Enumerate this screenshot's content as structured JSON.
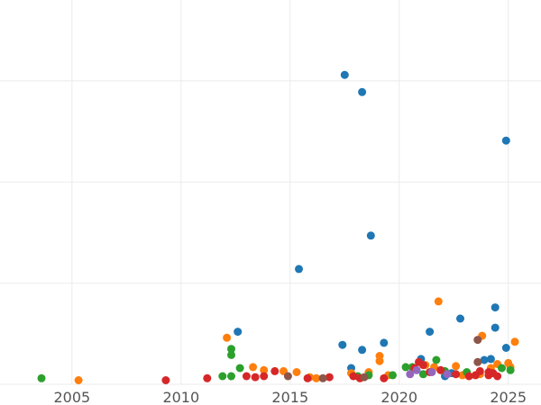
{
  "chart_data": {
    "type": "scatter",
    "title": "",
    "xlabel": "",
    "ylabel": "",
    "xlim": [
      2001.7,
      2026.5
    ],
    "ylim": [
      0,
      38
    ],
    "grid": true,
    "legend": "none",
    "x_ticks": [
      2005,
      2010,
      2015,
      2020,
      2025
    ],
    "x_tick_labels": [
      "2005",
      "2010",
      "2015",
      "2020",
      "2025"
    ],
    "y_gridlines": [
      0,
      10,
      20,
      30
    ],
    "series": [
      {
        "color": "#1f77b4",
        "points": [
          [
            2012.6,
            5.2
          ],
          [
            2015.4,
            11.4
          ],
          [
            2017.5,
            30.6
          ],
          [
            2018.3,
            28.9
          ],
          [
            2018.7,
            14.7
          ],
          [
            2017.4,
            3.9
          ],
          [
            2018.3,
            3.4
          ],
          [
            2019.3,
            4.1
          ],
          [
            2017.8,
            1.6
          ],
          [
            2021.0,
            2.5
          ],
          [
            2021.4,
            5.2
          ],
          [
            2022.8,
            6.5
          ],
          [
            2024.4,
            7.6
          ],
          [
            2024.4,
            5.6
          ],
          [
            2024.9,
            3.6
          ],
          [
            2023.9,
            2.4
          ],
          [
            2024.2,
            2.5
          ],
          [
            2024.9,
            24.1
          ],
          [
            2022.1,
            0.8
          ],
          [
            2022.4,
            1.1
          ]
        ]
      },
      {
        "color": "#ff7f0e",
        "points": [
          [
            2005.3,
            0.4
          ],
          [
            2012.1,
            4.6
          ],
          [
            2013.3,
            1.7
          ],
          [
            2013.8,
            1.4
          ],
          [
            2014.7,
            1.3
          ],
          [
            2015.3,
            1.2
          ],
          [
            2015.9,
            0.7
          ],
          [
            2016.2,
            0.6
          ],
          [
            2017.8,
            1.1
          ],
          [
            2018.6,
            1.2
          ],
          [
            2019.1,
            2.3
          ],
          [
            2019.1,
            2.8
          ],
          [
            2019.5,
            0.9
          ],
          [
            2021.2,
            1.9
          ],
          [
            2021.6,
            1.7
          ],
          [
            2021.8,
            8.2
          ],
          [
            2022.6,
            1.8
          ],
          [
            2023.8,
            4.8
          ],
          [
            2024.5,
            2.0
          ],
          [
            2025.0,
            2.1
          ],
          [
            2025.3,
            4.2
          ],
          [
            2025.1,
            1.7
          ],
          [
            2024.2,
            1.6
          ],
          [
            2023.7,
            1.0
          ],
          [
            2022.9,
            0.9
          ]
        ]
      },
      {
        "color": "#2ca02c",
        "points": [
          [
            2003.6,
            0.6
          ],
          [
            2011.9,
            0.8
          ],
          [
            2012.3,
            0.8
          ],
          [
            2012.3,
            3.5
          ],
          [
            2012.3,
            2.9
          ],
          [
            2012.7,
            1.6
          ],
          [
            2018.1,
            0.8
          ],
          [
            2018.6,
            0.9
          ],
          [
            2019.7,
            0.9
          ],
          [
            2020.3,
            1.7
          ],
          [
            2020.6,
            1.7
          ],
          [
            2021.7,
            2.4
          ],
          [
            2022.1,
            1.3
          ],
          [
            2024.7,
            1.6
          ],
          [
            2025.1,
            1.4
          ],
          [
            2023.1,
            1.2
          ],
          [
            2021.1,
            1.0
          ]
        ]
      },
      {
        "color": "#d62728",
        "points": [
          [
            2009.3,
            0.4
          ],
          [
            2011.2,
            0.6
          ],
          [
            2013.0,
            0.8
          ],
          [
            2013.4,
            0.7
          ],
          [
            2013.8,
            0.8
          ],
          [
            2014.3,
            1.3
          ],
          [
            2015.8,
            0.6
          ],
          [
            2016.8,
            0.7
          ],
          [
            2017.9,
            0.8
          ],
          [
            2018.2,
            0.6
          ],
          [
            2019.3,
            0.6
          ],
          [
            2020.7,
            1.6
          ],
          [
            2021.1,
            1.9
          ],
          [
            2021.4,
            1.2
          ],
          [
            2021.9,
            1.4
          ],
          [
            2022.6,
            1.0
          ],
          [
            2023.2,
            0.8
          ],
          [
            2023.5,
            0.9
          ],
          [
            2024.1,
            0.9
          ],
          [
            2024.3,
            1.1
          ],
          [
            2024.5,
            0.8
          ],
          [
            2023.7,
            1.3
          ],
          [
            2024.1,
            1.2
          ],
          [
            2020.9,
            2.2
          ]
        ]
      },
      {
        "color": "#9467bd",
        "points": [
          [
            2020.5,
            1.0
          ],
          [
            2021.5,
            1.2
          ],
          [
            2022.2,
            1.0
          ],
          [
            2020.8,
            1.4
          ]
        ]
      },
      {
        "color": "#8c564b",
        "points": [
          [
            2014.9,
            0.8
          ],
          [
            2016.5,
            0.6
          ],
          [
            2018.4,
            0.7
          ],
          [
            2023.6,
            4.4
          ],
          [
            2023.6,
            2.2
          ]
        ]
      }
    ]
  }
}
